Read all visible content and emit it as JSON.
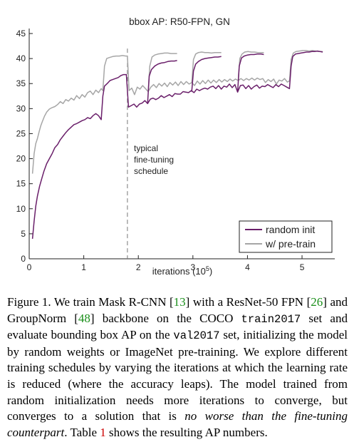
{
  "chart_data": {
    "type": "line",
    "title": "bbox AP: R50-FPN, GN",
    "xlabel": "iterations (10",
    "xlabel_exp": "5",
    "xlabel_close": ")",
    "ylabel": "",
    "xlim": [
      0,
      5.6
    ],
    "ylim": [
      0,
      46
    ],
    "xticks": [
      0,
      1,
      2,
      3,
      4,
      5
    ],
    "yticks": [
      0,
      5,
      10,
      15,
      20,
      25,
      30,
      35,
      40,
      45
    ],
    "grid": false,
    "legend_position": "bottom-right",
    "annotation": {
      "lines": [
        "typical",
        "fine-tuning",
        "schedule"
      ],
      "x": 1.8
    },
    "series": [
      {
        "name": "random init",
        "color": "#6a1f6a",
        "points": [
          [
            0.06,
            4.0
          ],
          [
            0.09,
            7.5
          ],
          [
            0.12,
            10.5
          ],
          [
            0.15,
            12.5
          ],
          [
            0.19,
            14.5
          ],
          [
            0.23,
            16.0
          ],
          [
            0.27,
            17.5
          ],
          [
            0.32,
            19.0
          ],
          [
            0.37,
            20.0
          ],
          [
            0.42,
            21.0
          ],
          [
            0.47,
            22.2
          ],
          [
            0.52,
            22.8
          ],
          [
            0.57,
            23.8
          ],
          [
            0.62,
            24.5
          ],
          [
            0.67,
            25.2
          ],
          [
            0.72,
            25.8
          ],
          [
            0.77,
            26.3
          ],
          [
            0.82,
            26.8
          ],
          [
            0.87,
            27.0
          ],
          [
            0.92,
            27.3
          ],
          [
            0.97,
            27.6
          ],
          [
            1.02,
            27.8
          ],
          [
            1.07,
            28.2
          ],
          [
            1.12,
            28.0
          ],
          [
            1.17,
            28.6
          ],
          [
            1.22,
            29.0
          ],
          [
            1.27,
            28.6
          ],
          [
            1.32,
            27.8
          ],
          [
            1.35,
            32.5
          ],
          [
            1.38,
            34.5
          ],
          [
            1.43,
            35.0
          ],
          [
            1.48,
            35.6
          ],
          [
            1.53,
            35.8
          ],
          [
            1.58,
            36.0
          ],
          [
            1.63,
            36.2
          ],
          [
            1.68,
            36.6
          ],
          [
            1.73,
            36.8
          ],
          [
            1.78,
            36.8
          ],
          [
            1.82,
            30.3
          ],
          [
            1.87,
            30.6
          ],
          [
            1.92,
            30.9
          ],
          [
            1.97,
            30.3
          ],
          [
            2.02,
            30.9
          ],
          [
            2.07,
            31.1
          ],
          [
            2.12,
            31.6
          ],
          [
            2.17,
            31.0
          ],
          [
            2.22,
            31.9
          ],
          [
            2.27,
            32.1
          ],
          [
            2.32,
            31.8
          ],
          [
            2.37,
            32.1
          ],
          [
            2.42,
            32.6
          ],
          [
            2.47,
            32.2
          ],
          [
            2.52,
            32.5
          ],
          [
            2.57,
            32.8
          ],
          [
            2.62,
            32.4
          ],
          [
            2.67,
            33.0
          ],
          [
            2.72,
            32.9
          ],
          [
            2.77,
            32.9
          ],
          [
            2.82,
            33.4
          ],
          [
            2.87,
            33.3
          ],
          [
            2.92,
            33.2
          ],
          [
            2.97,
            33.6
          ],
          [
            3.02,
            33.2
          ],
          [
            3.07,
            33.9
          ],
          [
            3.12,
            33.6
          ],
          [
            3.17,
            33.9
          ],
          [
            3.22,
            34.1
          ],
          [
            3.27,
            33.9
          ],
          [
            3.32,
            34.3
          ],
          [
            3.37,
            34.5
          ],
          [
            3.42,
            34.0
          ],
          [
            3.47,
            34.6
          ],
          [
            3.52,
            33.9
          ],
          [
            3.57,
            34.5
          ],
          [
            3.62,
            34.3
          ],
          [
            3.67,
            34.9
          ],
          [
            3.72,
            34.2
          ],
          [
            3.77,
            34.8
          ],
          [
            3.82,
            33.3
          ],
          [
            3.87,
            34.6
          ],
          [
            3.92,
            34.7
          ],
          [
            3.97,
            34.0
          ],
          [
            4.02,
            34.6
          ],
          [
            4.07,
            33.9
          ],
          [
            4.12,
            34.4
          ],
          [
            4.17,
            34.7
          ],
          [
            4.22,
            34.1
          ],
          [
            4.27,
            34.5
          ],
          [
            4.32,
            34.4
          ],
          [
            4.37,
            34.8
          ],
          [
            4.42,
            34.5
          ],
          [
            4.47,
            34.2
          ],
          [
            4.52,
            34.8
          ],
          [
            4.57,
            34.4
          ],
          [
            4.62,
            34.9
          ],
          [
            4.67,
            34.6
          ],
          [
            4.72,
            34.3
          ],
          [
            4.77,
            34.0
          ],
          [
            4.8,
            38.5
          ],
          [
            4.83,
            40.4
          ],
          [
            4.88,
            40.9
          ],
          [
            4.93,
            41.0
          ],
          [
            4.98,
            41.1
          ],
          [
            5.03,
            41.2
          ],
          [
            5.08,
            41.3
          ],
          [
            5.13,
            41.3
          ],
          [
            5.18,
            41.4
          ],
          [
            5.23,
            41.4
          ],
          [
            5.28,
            41.5
          ],
          [
            5.33,
            41.4
          ],
          [
            5.38,
            41.3
          ]
        ],
        "branches": [
          [
            [
              2.17,
              31.0
            ],
            [
              2.2,
              36.5
            ],
            [
              2.24,
              37.8
            ],
            [
              2.3,
              38.5
            ],
            [
              2.36,
              38.9
            ],
            [
              2.42,
              39.1
            ],
            [
              2.48,
              39.2
            ],
            [
              2.54,
              39.4
            ],
            [
              2.6,
              39.5
            ],
            [
              2.66,
              39.5
            ],
            [
              2.71,
              39.6
            ]
          ],
          [
            [
              2.98,
              33.6
            ],
            [
              3.01,
              37.5
            ],
            [
              3.05,
              38.9
            ],
            [
              3.1,
              39.4
            ],
            [
              3.16,
              39.8
            ],
            [
              3.22,
              40.0
            ],
            [
              3.28,
              40.1
            ],
            [
              3.34,
              40.2
            ],
            [
              3.4,
              40.3
            ],
            [
              3.46,
              40.3
            ],
            [
              3.52,
              40.4
            ]
          ],
          [
            [
              3.82,
              33.3
            ],
            [
              3.85,
              38.5
            ],
            [
              3.89,
              40.1
            ],
            [
              3.94,
              40.5
            ],
            [
              4.0,
              40.7
            ],
            [
              4.06,
              40.8
            ],
            [
              4.12,
              40.8
            ],
            [
              4.18,
              40.9
            ],
            [
              4.25,
              40.9
            ],
            [
              4.3,
              40.8
            ]
          ]
        ]
      },
      {
        "name": "w/ pre-train",
        "color": "#a6a6a6",
        "points": [
          [
            0.06,
            17.0
          ],
          [
            0.09,
            21.0
          ],
          [
            0.12,
            23.0
          ],
          [
            0.15,
            24.0
          ],
          [
            0.18,
            25.3
          ],
          [
            0.21,
            26.5
          ],
          [
            0.24,
            27.4
          ],
          [
            0.28,
            28.5
          ],
          [
            0.32,
            29.3
          ],
          [
            0.37,
            29.9
          ],
          [
            0.42,
            30.2
          ],
          [
            0.47,
            30.4
          ],
          [
            0.52,
            30.8
          ],
          [
            0.57,
            31.4
          ],
          [
            0.62,
            31.0
          ],
          [
            0.67,
            31.8
          ],
          [
            0.72,
            31.5
          ],
          [
            0.77,
            32.1
          ],
          [
            0.82,
            31.7
          ],
          [
            0.87,
            32.6
          ],
          [
            0.92,
            32.0
          ],
          [
            0.97,
            32.8
          ],
          [
            1.02,
            32.3
          ],
          [
            1.07,
            33.2
          ],
          [
            1.12,
            33.5
          ],
          [
            1.17,
            32.8
          ],
          [
            1.22,
            33.7
          ],
          [
            1.27,
            33.2
          ],
          [
            1.32,
            34.0
          ],
          [
            1.35,
            33.6
          ],
          [
            1.38,
            38.5
          ],
          [
            1.42,
            40.0
          ],
          [
            1.47,
            40.2
          ],
          [
            1.53,
            40.4
          ],
          [
            1.59,
            40.5
          ],
          [
            1.65,
            40.5
          ],
          [
            1.71,
            40.6
          ],
          [
            1.77,
            40.5
          ],
          [
            1.8,
            40.5
          ],
          [
            1.83,
            33.6
          ],
          [
            1.88,
            34.1
          ],
          [
            1.93,
            32.8
          ],
          [
            1.98,
            34.3
          ],
          [
            2.03,
            33.9
          ],
          [
            2.08,
            34.6
          ],
          [
            2.13,
            34.0
          ],
          [
            2.18,
            33.4
          ],
          [
            2.23,
            34.3
          ],
          [
            2.28,
            34.8
          ],
          [
            2.33,
            34.2
          ],
          [
            2.38,
            35.0
          ],
          [
            2.43,
            34.5
          ],
          [
            2.48,
            35.1
          ],
          [
            2.53,
            34.4
          ],
          [
            2.58,
            35.2
          ],
          [
            2.63,
            34.7
          ],
          [
            2.68,
            35.3
          ],
          [
            2.73,
            34.6
          ],
          [
            2.78,
            35.4
          ],
          [
            2.83,
            34.8
          ],
          [
            2.88,
            35.4
          ],
          [
            2.93,
            34.9
          ],
          [
            2.98,
            35.2
          ],
          [
            3.03,
            34.6
          ],
          [
            3.08,
            35.5
          ],
          [
            3.13,
            34.9
          ],
          [
            3.18,
            35.6
          ],
          [
            3.23,
            35.0
          ],
          [
            3.28,
            35.7
          ],
          [
            3.33,
            35.1
          ],
          [
            3.38,
            35.7
          ],
          [
            3.43,
            35.2
          ],
          [
            3.48,
            35.8
          ],
          [
            3.53,
            35.3
          ],
          [
            3.58,
            35.8
          ],
          [
            3.63,
            35.4
          ],
          [
            3.68,
            35.9
          ],
          [
            3.73,
            35.5
          ],
          [
            3.78,
            35.9
          ],
          [
            3.83,
            35.6
          ],
          [
            3.88,
            36.0
          ],
          [
            3.93,
            35.6
          ],
          [
            3.98,
            36.0
          ],
          [
            4.03,
            35.7
          ],
          [
            4.08,
            36.1
          ],
          [
            4.13,
            35.7
          ],
          [
            4.18,
            36.1
          ],
          [
            4.23,
            35.8
          ],
          [
            4.28,
            36.0
          ],
          [
            4.33,
            35.2
          ],
          [
            4.38,
            35.8
          ],
          [
            4.43,
            35.4
          ],
          [
            4.48,
            35.9
          ],
          [
            4.53,
            34.9
          ],
          [
            4.58,
            35.7
          ],
          [
            4.63,
            35.5
          ],
          [
            4.68,
            36.0
          ],
          [
            4.73,
            35.3
          ],
          [
            4.77,
            35.5
          ],
          [
            4.8,
            39.8
          ],
          [
            4.84,
            41.1
          ],
          [
            4.89,
            41.4
          ],
          [
            4.95,
            41.5
          ],
          [
            5.01,
            41.6
          ],
          [
            5.07,
            41.6
          ],
          [
            5.13,
            41.5
          ],
          [
            5.19,
            41.6
          ],
          [
            5.25,
            41.5
          ],
          [
            5.31,
            41.4
          ],
          [
            5.38,
            41.4
          ]
        ],
        "branches": [
          [
            [
              2.18,
              33.4
            ],
            [
              2.21,
              38.5
            ],
            [
              2.25,
              40.3
            ],
            [
              2.3,
              40.7
            ],
            [
              2.36,
              40.9
            ],
            [
              2.42,
              41.0
            ],
            [
              2.48,
              41.1
            ],
            [
              2.54,
              41.1
            ],
            [
              2.6,
              41.0
            ],
            [
              2.66,
              41.0
            ],
            [
              2.71,
              41.0
            ]
          ],
          [
            [
              2.98,
              35.2
            ],
            [
              3.01,
              39.8
            ],
            [
              3.05,
              40.9
            ],
            [
              3.1,
              41.2
            ],
            [
              3.16,
              41.3
            ],
            [
              3.22,
              41.2
            ],
            [
              3.28,
              41.2
            ],
            [
              3.34,
              41.1
            ],
            [
              3.4,
              41.2
            ],
            [
              3.46,
              41.2
            ],
            [
              3.52,
              41.2
            ]
          ],
          [
            [
              3.83,
              35.6
            ],
            [
              3.86,
              40.0
            ],
            [
              3.9,
              40.9
            ],
            [
              3.95,
              41.3
            ],
            [
              4.01,
              41.4
            ],
            [
              4.07,
              41.3
            ],
            [
              4.13,
              41.3
            ],
            [
              4.19,
              41.2
            ],
            [
              4.25,
              41.2
            ],
            [
              4.3,
              41.2
            ]
          ]
        ]
      }
    ]
  },
  "caption": {
    "p1": "Figure 1. We train Mask R-CNN [",
    "ref1": "13",
    "p2": "] with a ResNet-50 FPN [",
    "ref2": "26",
    "p3": "] and GroupNorm [",
    "ref3": "48",
    "p4": "] backbone on the COCO ",
    "code1": "train2017",
    "p5": " set and evaluate bounding box AP on the ",
    "code2": "val2017",
    "p6": " set, initializing the model by random weights or ImageNet pre-training. We explore different training schedules by varying the iterations at which the learning rate is reduced (where the accuracy leaps). The model trained from random initialization needs more iterations to converge, but converges to a solution that is ",
    "emph": "no worse than the fine-tuning counterpart",
    "p7": ". Table ",
    "ref4": "1",
    "p8": " shows the resulting AP numbers."
  }
}
